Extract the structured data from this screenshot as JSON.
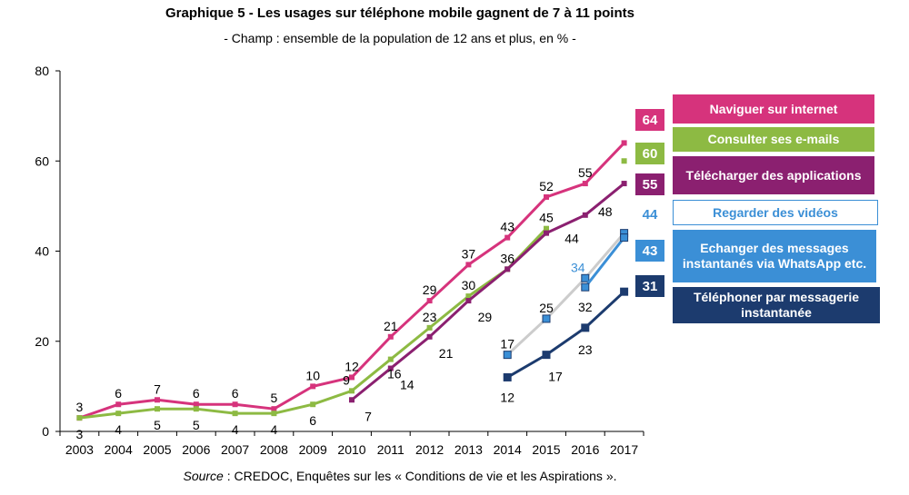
{
  "title": "Graphique 5 - Les usages sur téléphone mobile gagnent de 7 à 11 points",
  "subtitle": "- Champ : ensemble de la population de 12 ans et plus, en % -",
  "source": {
    "label": "Source",
    "text": " : CREDOC, Enquêtes sur les « Conditions de vie et les Aspirations »."
  },
  "chart_data": {
    "type": "line",
    "title": "Graphique 5 - Les usages sur téléphone mobile gagnent de 7 à 11 points",
    "xlabel": "",
    "ylabel": "",
    "ylim": [
      0,
      80
    ],
    "yticks": [
      0,
      20,
      40,
      60,
      80
    ],
    "grid": false,
    "legend_position": "right",
    "categories": [
      "2003",
      "2004",
      "2005",
      "2006",
      "2007",
      "2008",
      "2009",
      "2010",
      "2011",
      "2012",
      "2013",
      "2014",
      "2015",
      "2016",
      "2017"
    ],
    "series": [
      {
        "name": "Naviguer sur internet",
        "color": "#d6337c",
        "marker": "dash",
        "values": [
          3,
          6,
          7,
          6,
          6,
          5,
          10,
          12,
          21,
          29,
          37,
          43,
          52,
          55,
          64
        ],
        "labels": [
          "3",
          "6",
          "7",
          "6",
          "6",
          "5",
          "10",
          "12",
          "21",
          "29",
          "37",
          "43",
          "52",
          "55",
          ""
        ],
        "end_label": "64"
      },
      {
        "name": "Consulter ses e-mails",
        "color": "#8dba43",
        "marker": "dash",
        "values": [
          3,
          4,
          5,
          5,
          4,
          4,
          6,
          9,
          16,
          23,
          30,
          36,
          45,
          null,
          60
        ],
        "labels": [
          "3",
          "4",
          "5",
          "5",
          "4",
          "4",
          "6",
          "9",
          "16",
          "23",
          "30",
          "",
          "45",
          "",
          ""
        ],
        "end_label": "60"
      },
      {
        "name": "Télécharger des applications",
        "color": "#8b2070",
        "marker": "dash",
        "values": [
          null,
          null,
          null,
          null,
          null,
          null,
          null,
          7,
          14,
          21,
          29,
          36,
          44,
          48,
          55
        ],
        "labels": [
          "",
          "",
          "",
          "",
          "",
          "",
          "",
          "7",
          "14",
          "21",
          "29",
          "36",
          "44",
          "48",
          ""
        ],
        "end_label": "55"
      },
      {
        "name": "Regarder des vidéos",
        "color": "#cccccc",
        "marker": "square-light",
        "values": [
          null,
          null,
          null,
          null,
          null,
          null,
          null,
          null,
          null,
          null,
          null,
          17,
          25,
          34,
          44
        ],
        "labels": [
          "",
          "",
          "",
          "",
          "",
          "",
          "",
          "",
          "",
          "",
          "",
          "17",
          "25",
          "34",
          ""
        ],
        "end_label": "44"
      },
      {
        "name": "Echanger des messages instantanés via WhatsApp etc.",
        "color": "#3b8fd6",
        "marker": "square",
        "values": [
          null,
          null,
          null,
          null,
          null,
          null,
          null,
          null,
          null,
          null,
          null,
          null,
          null,
          32,
          43
        ],
        "labels": [
          "",
          "",
          "",
          "",
          "",
          "",
          "",
          "",
          "",
          "",
          "",
          "",
          "",
          "32",
          ""
        ],
        "end_label": "43"
      },
      {
        "name": "Téléphoner par messagerie instantanée",
        "color": "#1c3b6e",
        "marker": "square",
        "values": [
          null,
          null,
          null,
          null,
          null,
          null,
          null,
          null,
          null,
          null,
          null,
          12,
          17,
          23,
          31
        ],
        "labels": [
          "",
          "",
          "",
          "",
          "",
          "",
          "",
          "",
          "",
          "",
          "",
          "12",
          "17",
          "23",
          ""
        ],
        "end_label": "31"
      }
    ]
  },
  "legend": [
    {
      "label": "Naviguer sur internet",
      "badge": "64",
      "bg": "#d6337c",
      "fg": "#ffffff",
      "badge_bg": "#d6337c",
      "badge_fg": "#ffffff"
    },
    {
      "label": "Consulter ses e-mails",
      "badge": "60",
      "bg": "#8dba43",
      "fg": "#ffffff",
      "badge_bg": "#8dba43",
      "badge_fg": "#ffffff"
    },
    {
      "label": "Télécharger des applications",
      "badge": "55",
      "bg": "#8b2070",
      "fg": "#ffffff",
      "badge_bg": "#8b2070",
      "badge_fg": "#ffffff"
    },
    {
      "label": "Regarder des vidéos",
      "badge": "44",
      "bg": "#ffffff",
      "fg": "#3b8fd6",
      "badge_bg": "#ffffff",
      "badge_fg": "#3b8fd6"
    },
    {
      "label": "Echanger des messages instantanés via WhatsApp etc.",
      "badge": "43",
      "bg": "#3b8fd6",
      "fg": "#ffffff",
      "badge_bg": "#3b8fd6",
      "badge_fg": "#ffffff"
    },
    {
      "label": "Téléphoner par messagerie instantanée",
      "badge": "31",
      "bg": "#1c3b6e",
      "fg": "#ffffff",
      "badge_bg": "#1c3b6e",
      "badge_fg": "#ffffff"
    }
  ]
}
